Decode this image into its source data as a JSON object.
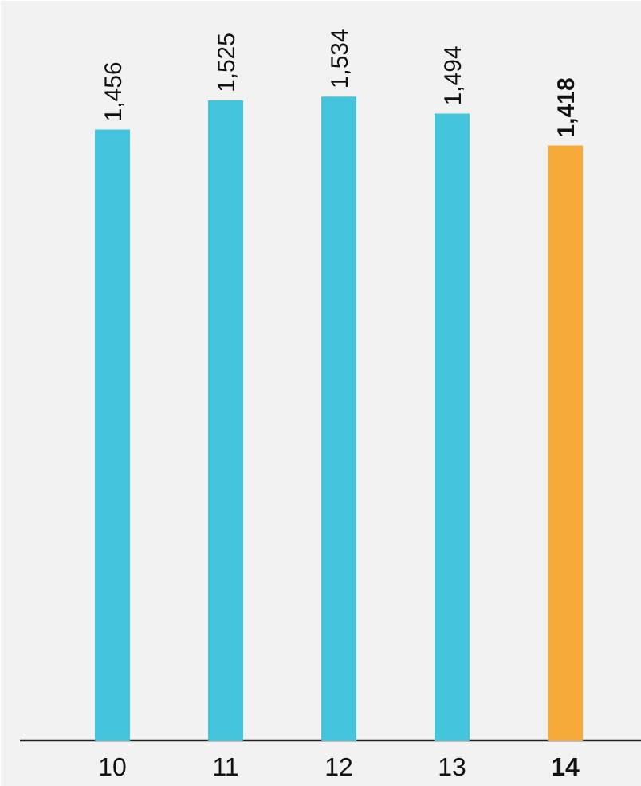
{
  "chart_data": {
    "type": "bar",
    "categories": [
      "10",
      "11",
      "12",
      "13",
      "14"
    ],
    "values": [
      1456,
      1525,
      1534,
      1494,
      1418
    ],
    "colors": [
      "#45c4dd",
      "#45c4dd",
      "#45c4dd",
      "#45c4dd",
      "#f6aa3a"
    ],
    "value_labels": [
      "1,456",
      "1,525",
      "1,534",
      "1,494",
      "1,418"
    ],
    "grid": false,
    "tick_labels": "x"
  }
}
